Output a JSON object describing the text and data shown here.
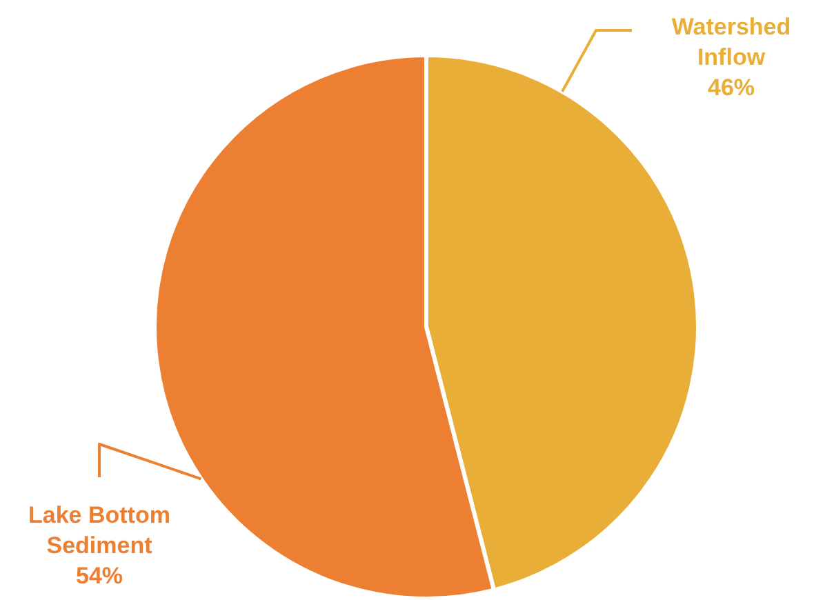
{
  "chart_data": {
    "type": "pie",
    "categories": [
      "Watershed Inflow",
      "Lake Bottom Sediment"
    ],
    "values": [
      46,
      54
    ],
    "colors": [
      "#e9ae37",
      "#ed7f32"
    ],
    "value_labels": [
      "46%",
      "54%"
    ]
  }
}
